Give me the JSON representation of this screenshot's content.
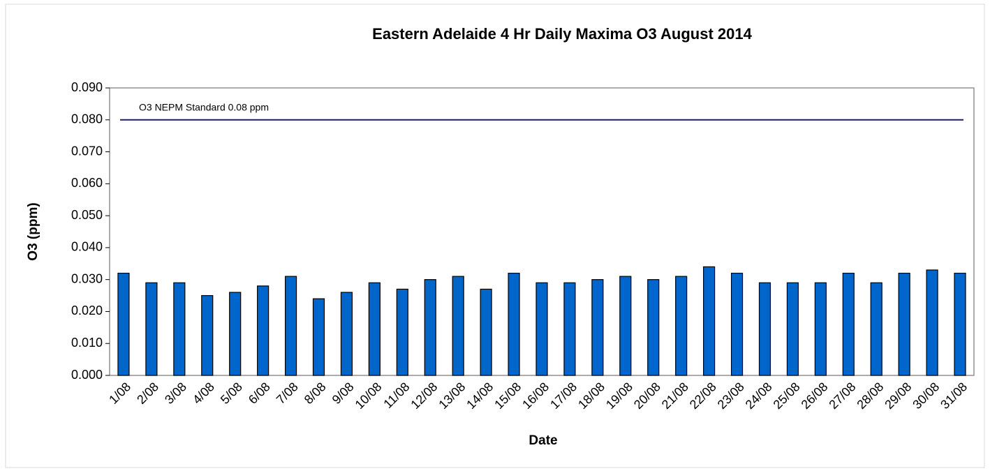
{
  "chart_data": {
    "type": "bar",
    "title": "Eastern Adelaide 4 Hr Daily Maxima O3 August 2014",
    "x_label": "Date",
    "y_label": "O3 (ppm)",
    "categories": [
      "1/08",
      "2/08",
      "3/08",
      "4/08",
      "5/08",
      "6/08",
      "7/08",
      "8/08",
      "9/08",
      "10/08",
      "11/08",
      "12/08",
      "13/08",
      "14/08",
      "15/08",
      "16/08",
      "17/08",
      "18/08",
      "19/08",
      "20/08",
      "21/08",
      "22/08",
      "23/08",
      "24/08",
      "25/08",
      "26/08",
      "27/08",
      "28/08",
      "29/08",
      "30/08",
      "31/08"
    ],
    "values": [
      0.032,
      0.029,
      0.029,
      0.025,
      0.026,
      0.028,
      0.031,
      0.024,
      0.026,
      0.029,
      0.027,
      0.03,
      0.031,
      0.027,
      0.032,
      0.029,
      0.029,
      0.03,
      0.031,
      0.03,
      0.031,
      0.034,
      0.032,
      0.029,
      0.029,
      0.029,
      0.032,
      0.029,
      0.032,
      0.033,
      0.032
    ],
    "color": "#0066cc",
    "ylim": [
      0,
      0.09
    ],
    "yticks": [
      {
        "value": 0,
        "label": "0.000"
      },
      {
        "value": 0.01,
        "label": "0.010"
      },
      {
        "value": 0.02,
        "label": "0.020"
      },
      {
        "value": 0.03,
        "label": "0.030"
      },
      {
        "value": 0.04,
        "label": "0.040"
      },
      {
        "value": 0.05,
        "label": "0.050"
      },
      {
        "value": 0.06,
        "label": "0.060"
      },
      {
        "value": 0.07,
        "label": "0.070"
      },
      {
        "value": 0.08,
        "label": "0.080"
      },
      {
        "value": 0.09,
        "label": "0.090"
      }
    ],
    "grid": false,
    "reference_line": {
      "value": 0.08,
      "label": "O3 NEPM Standard 0.08 ppm",
      "color": "#1a1a6e"
    }
  }
}
